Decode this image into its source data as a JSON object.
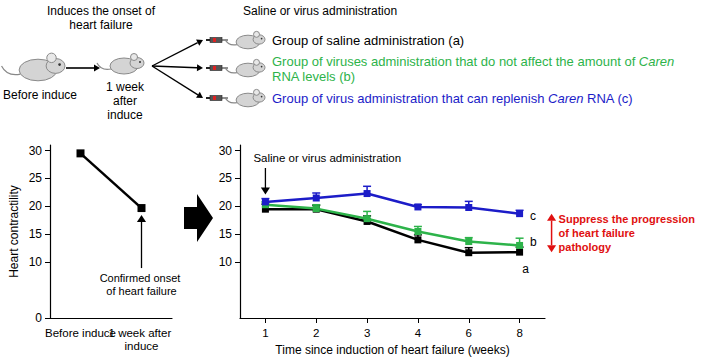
{
  "diagram": {
    "induce_label": "Induces the onset of heart failure",
    "before_label": "Before induce",
    "after_label": "1 week after induce",
    "administration_label": "Saline or virus administration",
    "gene": "Caren",
    "groups": [
      {
        "text": "Group of saline administration (a)",
        "color": "#000000"
      },
      {
        "text": "Group of viruses administration that do not affect the amount of Caren RNA levels (b)",
        "color": "#2db34a"
      },
      {
        "text": "Group of virus administration that can replenish Caren RNA (c)",
        "color": "#1c1cc8"
      }
    ]
  },
  "chart_data": [
    {
      "type": "line",
      "y_label": "Heart contractility",
      "categories": [
        "Before induce",
        "1 week after induce"
      ],
      "values": [
        29.5,
        19.7
      ],
      "color": "#000000",
      "marker": "square",
      "ylim": [
        0,
        31
      ],
      "yticks": [
        0,
        10,
        15,
        20,
        25,
        30
      ],
      "annotations": [
        "Confirmed onset of heart failure"
      ]
    },
    {
      "type": "line",
      "x_label": "Time since induction of heart failure (weeks)",
      "categories": [
        "1",
        "2",
        "3",
        "4",
        "6",
        "8"
      ],
      "marker": "square",
      "series": [
        {
          "name": "a",
          "color": "#000000",
          "values": [
            19.5,
            19.5,
            17.3,
            14.0,
            11.7,
            11.8
          ],
          "errors": [
            0.9,
            0.7,
            1.0,
            0.9,
            0.9,
            0.9
          ]
        },
        {
          "name": "b",
          "color": "#2db34a",
          "values": [
            20.3,
            19.6,
            17.8,
            15.5,
            13.7,
            13.0
          ],
          "errors": [
            0.5,
            0.7,
            1.3,
            0.9,
            0.7,
            1.3
          ]
        },
        {
          "name": "c",
          "color": "#1c1cc8",
          "values": [
            20.8,
            21.5,
            22.3,
            19.9,
            19.8,
            18.7
          ],
          "errors": [
            0.6,
            0.9,
            1.3,
            0.4,
            1.1,
            0.6
          ]
        }
      ],
      "ylim": [
        0,
        31
      ],
      "yticks": [
        10,
        15,
        20,
        25,
        30
      ],
      "annotations": [
        "Saline or virus administration",
        "Suppress the progression of heart failure pathology"
      ]
    }
  ]
}
